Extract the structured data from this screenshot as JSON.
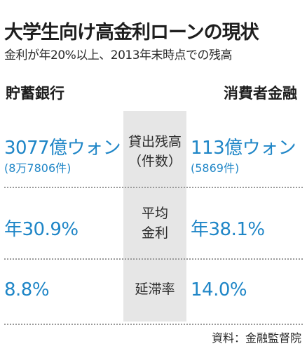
{
  "header": {
    "title": "大学生向け高金利ローンの現状",
    "subtitle": "金利が年20%以上、2013年末時点での残高"
  },
  "columns": {
    "left": "貯蓄銀行",
    "right": "消費者金融"
  },
  "rows": [
    {
      "metric_line1": "貸出残高",
      "metric_line2": "（件数）",
      "left_value": "3077億ウォン",
      "left_sub": "(8万7806件)",
      "right_value": "113億ウォン",
      "right_sub": "(5869件)"
    },
    {
      "metric_line1": "平均",
      "metric_line2": "金利",
      "left_value": "年30.9%",
      "right_value": "年38.1%"
    },
    {
      "metric_line1": "延滞率",
      "left_value": "8.8%",
      "right_value": "14.0%"
    }
  ],
  "source": "資料：金融監督院",
  "colors": {
    "accent": "#1f86c7",
    "band": "#e6e6e6",
    "text": "#2a2a2a"
  }
}
